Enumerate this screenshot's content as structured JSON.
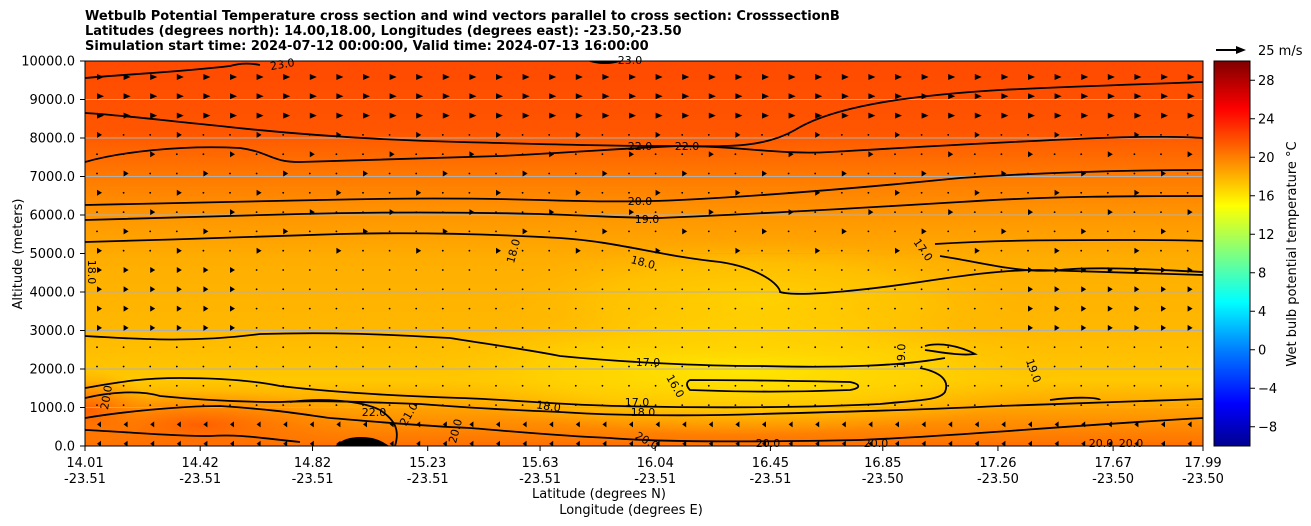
{
  "titles": [
    "Wetbulb Potential Temperature cross section and wind vectors parallel to cross section: CrosssectionB",
    "Latitudes (degrees north): 14.00,18.00, Longitudes (degrees east): -23.50,-23.50",
    "Simulation start time: 2024-07-12 00:00:00, Valid time: 2024-07-13 16:00:00"
  ],
  "chart_data": {
    "type": "heatmap",
    "ylabel": "Altitude (meters)",
    "xlabel": "Latitude (degrees N)",
    "xlabel2": "Longitude (degrees E)",
    "ylim": [
      0,
      10000
    ],
    "yticks": [
      "0.0",
      "1000.0",
      "2000.0",
      "3000.0",
      "4000.0",
      "5000.0",
      "6000.0",
      "7000.0",
      "8000.0",
      "9000.0",
      "10000.0"
    ],
    "xticks_lat": [
      "14.01",
      "14.42",
      "14.82",
      "15.23",
      "15.63",
      "16.04",
      "16.45",
      "16.85",
      "17.26",
      "17.67",
      "17.99"
    ],
    "xticks_lon": [
      "-23.51",
      "-23.51",
      "-23.51",
      "-23.51",
      "-23.51",
      "-23.51",
      "-23.51",
      "-23.50",
      "-23.50",
      "-23.50",
      "-23.50"
    ],
    "xlim": [
      14.01,
      17.99
    ],
    "grid": "horizontal",
    "colorbar": {
      "label": "Wet bulb potential temperature °C",
      "ticks": [
        "-8",
        "-4",
        "0",
        "4",
        "8",
        "12",
        "16",
        "20",
        "24",
        "28"
      ],
      "range": [
        -10,
        30
      ]
    },
    "quiver_key": "25 m/s",
    "contour_labels": [
      "22.0",
      "22.0",
      "20.0",
      "19.0",
      "18.0",
      "18.0",
      "17.0",
      "18.0",
      "17.0",
      "17.0",
      "16.0",
      "18.0",
      "19.0",
      "19.0",
      "20.0",
      "22.0",
      "21.0",
      "20.0",
      "20.0",
      "20.0",
      "20.0",
      "20.0",
      "20.0",
      "23.0",
      "23.0",
      "18.0"
    ],
    "field_summary": [
      {
        "altitude": 9500,
        "value": 23
      },
      {
        "altitude": 7500,
        "value": 21
      },
      {
        "altitude": 6000,
        "value": 19.5
      },
      {
        "altitude": 4500,
        "value": 18
      },
      {
        "altitude": 1500,
        "value": 16.5
      },
      {
        "altitude": 300,
        "value": 20
      }
    ]
  }
}
